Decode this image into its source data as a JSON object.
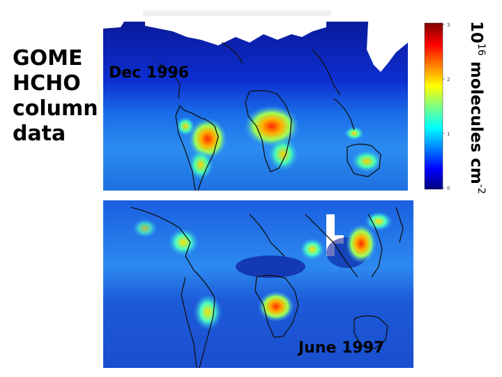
{
  "title": {
    "line1": "GOME",
    "line2": "HCHO",
    "line3": "column",
    "line4": "data"
  },
  "panels": {
    "dec": {
      "label": "Dec 1996"
    },
    "jun": {
      "label": "June 1997"
    }
  },
  "colorbar": {
    "unit_base": "10",
    "unit_exp": "16",
    "unit_text": " molecules cm",
    "unit_exp2": "-2",
    "ticks": [
      "0",
      "1",
      "2",
      "3"
    ],
    "colors": [
      "#00007f",
      "#0000ff",
      "#0080ff",
      "#00ffff",
      "#80ff80",
      "#ffff00",
      "#ff8000",
      "#ff0000",
      "#7f0000"
    ]
  }
}
